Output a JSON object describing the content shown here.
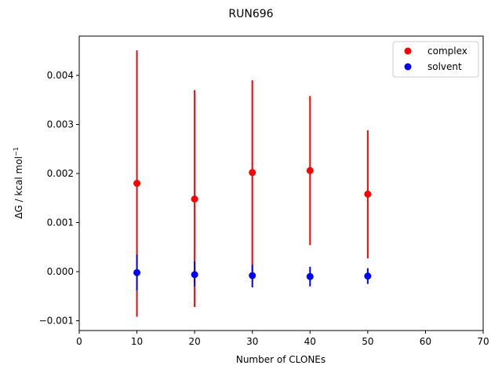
{
  "chart_data": {
    "type": "scatter",
    "title": "RUN696",
    "xlabel": "Number of CLONEs",
    "ylabel_main": "ΔG / kcal mol",
    "ylabel_sup": "−1",
    "xlim": [
      0,
      70
    ],
    "ylim": [
      -0.0012,
      0.0048
    ],
    "xticks": [
      0,
      10,
      20,
      30,
      40,
      50,
      60,
      70
    ],
    "xtick_labels": [
      "0",
      "10",
      "20",
      "30",
      "40",
      "50",
      "60",
      "70"
    ],
    "yticks": [
      -0.001,
      0.0,
      0.001,
      0.002,
      0.003,
      0.004
    ],
    "ytick_labels": [
      "−0.001",
      "0.000",
      "0.001",
      "0.002",
      "0.003",
      "0.004"
    ],
    "grid": false,
    "legend_position": "top-right",
    "series": [
      {
        "name": "complex",
        "color": "#ff0000",
        "x": [
          10,
          20,
          30,
          40,
          50
        ],
        "y": [
          0.0018,
          0.00148,
          0.00202,
          0.00206,
          0.00158
        ],
        "err_low": [
          -0.00092,
          -0.00072,
          0.0,
          0.00054,
          0.00027
        ],
        "err_high": [
          0.00451,
          0.0037,
          0.0039,
          0.00358,
          0.00288
        ]
      },
      {
        "name": "solvent",
        "color": "#0000ff",
        "x": [
          10,
          20,
          30,
          40,
          50
        ],
        "y": [
          -2e-05,
          -6e-05,
          -8e-05,
          -0.0001,
          -9e-05
        ],
        "err_low": [
          -0.00038,
          -0.0003,
          -0.00032,
          -0.0003,
          -0.00025
        ],
        "err_high": [
          0.00035,
          0.00021,
          0.00014,
          0.0001,
          7e-05
        ]
      }
    ]
  }
}
